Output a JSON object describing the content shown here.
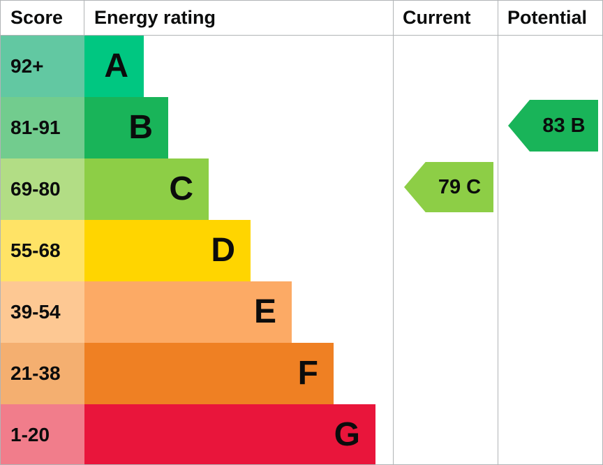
{
  "header": {
    "score": "Score",
    "energy_rating": "Energy rating",
    "current": "Current",
    "potential": "Potential"
  },
  "bands": [
    {
      "score": "92+",
      "letter": "A",
      "bar_color": "#00c781",
      "score_color": "#62c8a2"
    },
    {
      "score": "81-91",
      "letter": "B",
      "bar_color": "#19b459",
      "score_color": "#72cc8e"
    },
    {
      "score": "69-80",
      "letter": "C",
      "bar_color": "#8dce46",
      "score_color": "#b2dd85"
    },
    {
      "score": "55-68",
      "letter": "D",
      "bar_color": "#ffd500",
      "score_color": "#ffe366"
    },
    {
      "score": "39-54",
      "letter": "E",
      "bar_color": "#fcaa65",
      "score_color": "#fdc893"
    },
    {
      "score": "21-38",
      "letter": "F",
      "bar_color": "#ef8023",
      "score_color": "#f4af70"
    },
    {
      "score": "1-20",
      "letter": "G",
      "bar_color": "#e9153b",
      "score_color": "#f17d8b"
    }
  ],
  "current": {
    "label": "79 C",
    "value": 79,
    "band": "C",
    "color": "#8dce46"
  },
  "potential": {
    "label": "83 B",
    "value": 83,
    "band": "B",
    "color": "#19b459"
  },
  "grid_color": "#b1b4b6",
  "text_color": "#0b0c0c",
  "chart_data": {
    "type": "bar",
    "title": "Energy rating",
    "categories": [
      "A",
      "B",
      "C",
      "D",
      "E",
      "F",
      "G"
    ],
    "score_ranges": [
      "92+",
      "81-91",
      "69-80",
      "55-68",
      "39-54",
      "21-38",
      "1-20"
    ],
    "band_colors": [
      "#00c781",
      "#19b459",
      "#8dce46",
      "#ffd500",
      "#fcaa65",
      "#ef8023",
      "#e9153b"
    ],
    "columns": [
      "Score",
      "Energy rating",
      "Current",
      "Potential"
    ],
    "markers": [
      {
        "column": "Current",
        "value": 79,
        "band": "C",
        "color": "#8dce46"
      },
      {
        "column": "Potential",
        "value": 83,
        "band": "B",
        "color": "#19b459"
      }
    ],
    "legend_position": "none",
    "grid": false,
    "orientation": "horizontal",
    "note": "bar length increases from best band A to worst band G"
  }
}
